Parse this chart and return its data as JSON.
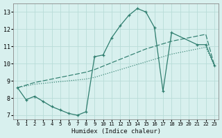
{
  "xlabel": "Humidex (Indice chaleur)",
  "xlim": [
    -0.5,
    23.5
  ],
  "ylim": [
    6.75,
    13.5
  ],
  "yticks": [
    7,
    8,
    9,
    10,
    11,
    12,
    13
  ],
  "xticks": [
    0,
    1,
    2,
    3,
    4,
    5,
    6,
    7,
    8,
    9,
    10,
    11,
    12,
    13,
    14,
    15,
    16,
    17,
    18,
    19,
    20,
    21,
    22,
    23
  ],
  "bg_color": "#d8f0ee",
  "line_color": "#2e7d6e",
  "grid_color": "#b8dcd8",
  "line1_x": [
    0,
    1,
    2,
    3,
    4,
    5,
    6,
    7,
    8,
    9,
    10,
    11,
    12,
    13,
    14,
    15,
    16,
    17,
    18,
    21,
    22,
    23
  ],
  "line1_y": [
    8.6,
    7.9,
    8.1,
    7.8,
    7.5,
    7.3,
    7.1,
    7.0,
    7.2,
    10.4,
    10.5,
    11.5,
    12.2,
    12.8,
    13.2,
    13.0,
    12.1,
    8.4,
    11.8,
    11.1,
    11.1,
    9.9
  ],
  "line2_x": [
    0,
    1,
    2,
    3,
    4,
    5,
    6,
    7,
    8,
    9,
    10,
    11,
    12,
    13,
    14,
    15,
    16,
    17,
    18,
    19,
    20,
    21,
    22,
    23
  ],
  "line2_y": [
    8.6,
    8.7,
    8.8,
    8.85,
    8.9,
    8.95,
    9.0,
    9.05,
    9.1,
    9.2,
    9.35,
    9.5,
    9.65,
    9.8,
    9.95,
    10.1,
    10.25,
    10.4,
    10.55,
    10.65,
    10.75,
    10.85,
    10.95,
    9.9
  ],
  "line3_x": [
    0,
    1,
    2,
    3,
    4,
    5,
    6,
    7,
    8,
    9,
    10,
    11,
    12,
    13,
    14,
    15,
    16,
    17,
    18,
    19,
    20,
    21,
    22,
    23
  ],
  "line3_y": [
    8.6,
    8.75,
    8.9,
    9.0,
    9.1,
    9.2,
    9.3,
    9.4,
    9.5,
    9.65,
    9.85,
    10.05,
    10.25,
    10.45,
    10.65,
    10.85,
    11.0,
    11.15,
    11.3,
    11.4,
    11.5,
    11.6,
    11.7,
    9.9
  ]
}
